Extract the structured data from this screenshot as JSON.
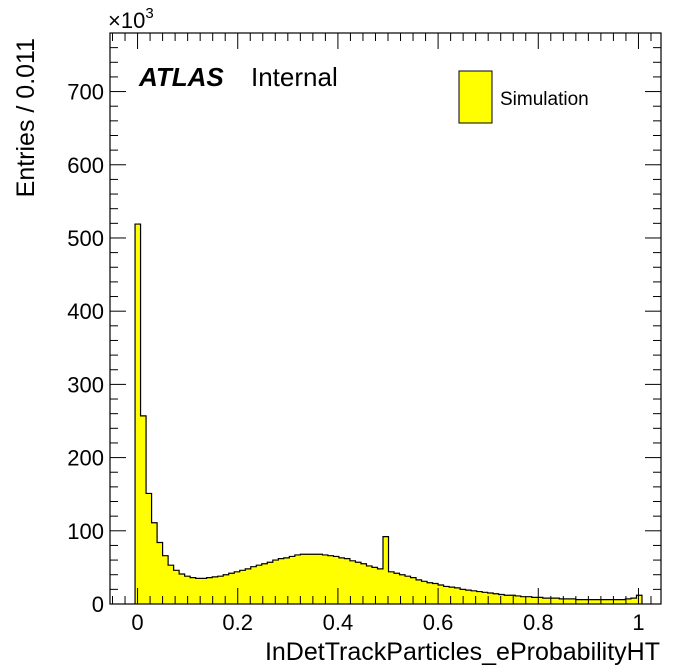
{
  "chart_data": {
    "type": "bar",
    "style": "step-histogram",
    "xlabel": "InDetTrackParticles_eProbabilityHT",
    "ylabel": "Entries / 0.011",
    "y_multiplier_label": "×10",
    "y_multiplier_exponent": "3",
    "xlim": [
      -0.055,
      1.045
    ],
    "ylim": [
      0,
      780
    ],
    "x_ticks": [
      0,
      0.2,
      0.4,
      0.6,
      0.8,
      1
    ],
    "x_tick_labels": [
      "0",
      "0.2",
      "0.4",
      "0.6",
      "0.8",
      "1"
    ],
    "y_ticks": [
      0,
      100,
      200,
      300,
      400,
      500,
      600,
      700
    ],
    "y_tick_labels": [
      "0",
      "100",
      "200",
      "300",
      "400",
      "500",
      "600",
      "700"
    ],
    "experiment": "ATLAS",
    "status": "Internal",
    "legend_position": "top-right",
    "grid": false,
    "bin_width": 0.011,
    "bin_start": -0.005,
    "series": [
      {
        "name": "Simulation",
        "color": "#ffff00",
        "edge_color": "#000000",
        "values": [
          519,
          257,
          151,
          111,
          84,
          66,
          53,
          46,
          41,
          38,
          36,
          35,
          35,
          36,
          37,
          38,
          40,
          42,
          44,
          46,
          48,
          51,
          53,
          55,
          57,
          60,
          62,
          63,
          65,
          67,
          68,
          68,
          68,
          68,
          67,
          66,
          65,
          63,
          62,
          59,
          57,
          55,
          52,
          50,
          48,
          92,
          44,
          42,
          40,
          38,
          36,
          33,
          31,
          29,
          28,
          26,
          24,
          23,
          22,
          20,
          19,
          18,
          17,
          16,
          15,
          14,
          13,
          12,
          12,
          11,
          10,
          10,
          9,
          9,
          8,
          8,
          8,
          7,
          7,
          7,
          6,
          6,
          6,
          6,
          6,
          6,
          6,
          6,
          6,
          7,
          8,
          12
        ]
      }
    ]
  }
}
